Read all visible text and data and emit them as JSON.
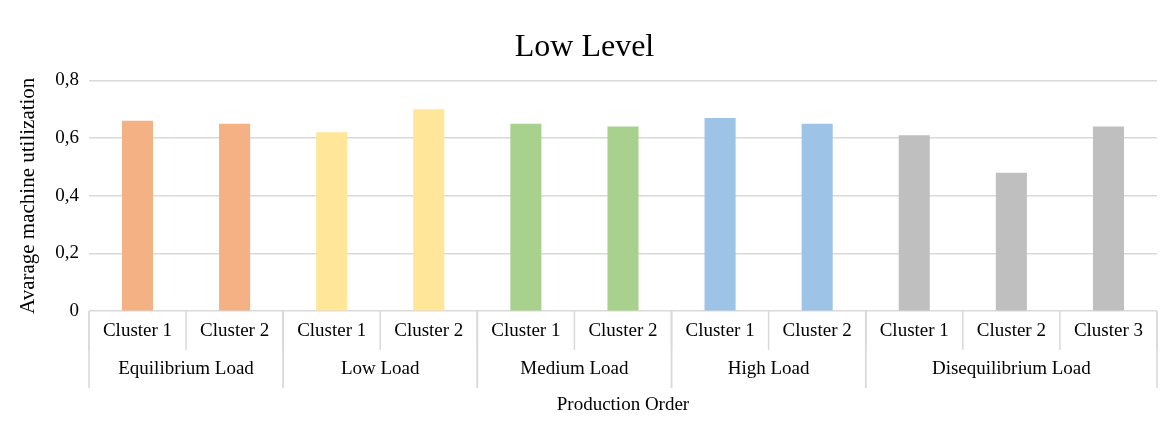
{
  "chart_data": {
    "type": "bar",
    "title": "Low Level",
    "xlabel": "Production Order",
    "ylabel": "Avarage machine utilization",
    "categories": [
      "Cluster 1",
      "Cluster 2",
      "Cluster 1",
      "Cluster 2",
      "Cluster 1",
      "Cluster 2",
      "Cluster 1",
      "Cluster 2",
      "Cluster 1",
      "Cluster 2",
      "Cluster 3"
    ],
    "series": [
      {
        "name": "Equilibrium Load",
        "color": "#f4b183",
        "values": [
          0.66,
          0.65,
          null,
          null,
          null,
          null,
          null,
          null,
          null,
          null,
          null
        ]
      },
      {
        "name": "Low Load",
        "color": "#ffe699",
        "values": [
          null,
          null,
          0.62,
          0.7,
          null,
          null,
          null,
          null,
          null,
          null,
          null
        ]
      },
      {
        "name": "Medium Load",
        "color": "#a9d18e",
        "values": [
          null,
          null,
          null,
          null,
          0.65,
          0.64,
          null,
          null,
          null,
          null,
          null
        ]
      },
      {
        "name": "High Load",
        "color": "#9dc3e6",
        "values": [
          null,
          null,
          null,
          null,
          null,
          null,
          0.67,
          0.65,
          null,
          null,
          null
        ]
      },
      {
        "name": "Disequilibrium Load",
        "color": "#bfbfbf",
        "values": [
          null,
          null,
          null,
          null,
          null,
          null,
          null,
          null,
          0.61,
          0.48,
          0.64
        ]
      }
    ],
    "ylim": [
      0,
      0.8
    ],
    "yticks": [
      {
        "value": 0,
        "label": "0"
      },
      {
        "value": 0.2,
        "label": "0,2"
      },
      {
        "value": 0.4,
        "label": "0,4"
      },
      {
        "value": 0.6,
        "label": "0,6"
      },
      {
        "value": 0.8,
        "label": "0,8"
      }
    ],
    "grid": "y",
    "legend": false
  }
}
